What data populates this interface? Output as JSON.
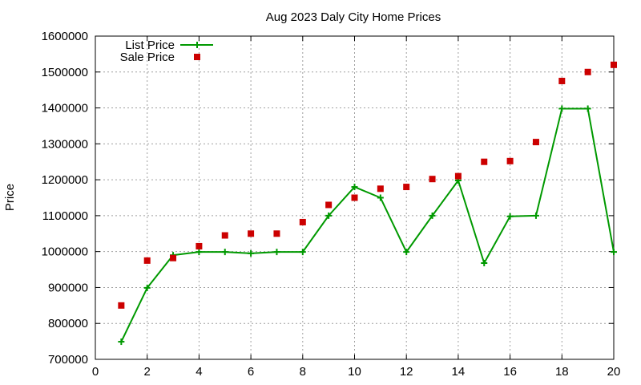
{
  "chart_data": {
    "type": "line",
    "title": "Aug 2023 Daly City Home Prices",
    "xlabel": "",
    "ylabel": "Price",
    "xlim": [
      0,
      20
    ],
    "ylim": [
      700000,
      1600000
    ],
    "x_ticks": [
      0,
      2,
      4,
      6,
      8,
      10,
      12,
      14,
      16,
      18,
      20
    ],
    "y_ticks": [
      700000,
      800000,
      900000,
      1000000,
      1100000,
      1200000,
      1300000,
      1400000,
      1500000,
      1600000
    ],
    "grid": true,
    "legend_position": "top-left",
    "series": [
      {
        "name": "List Price",
        "style": "line+cross",
        "color": "#009900",
        "x": [
          1,
          2,
          3,
          4,
          5,
          6,
          7,
          8,
          9,
          10,
          11,
          12,
          13,
          14,
          15,
          16,
          17,
          18,
          19,
          20
        ],
        "values": [
          749000,
          899000,
          990000,
          999000,
          999000,
          995000,
          999000,
          999000,
          1100000,
          1180000,
          1150000,
          999000,
          1100000,
          1198000,
          968000,
          1098000,
          1100000,
          1398000,
          1398000,
          999000
        ]
      },
      {
        "name": "Sale Price",
        "style": "square",
        "color": "#cc0000",
        "x": [
          1,
          2,
          3,
          4,
          5,
          6,
          7,
          8,
          9,
          10,
          11,
          12,
          13,
          14,
          15,
          16,
          17,
          18,
          19,
          20
        ],
        "values": [
          850000,
          975000,
          982000,
          1015000,
          1045000,
          1050000,
          1050000,
          1082000,
          1130000,
          1150000,
          1175000,
          1180000,
          1202000,
          1210000,
          1250000,
          1252000,
          1305000,
          1475000,
          1500000,
          1520000
        ]
      }
    ]
  }
}
